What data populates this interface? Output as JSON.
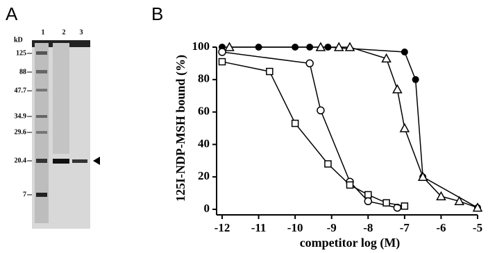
{
  "panels": {
    "a": "A",
    "b": "B"
  },
  "gel": {
    "unit": "kD",
    "lanes": [
      "1",
      "2",
      "3"
    ],
    "markers": [
      "125",
      "88",
      "47.7",
      "34.9",
      "29.6",
      "20.4",
      "7"
    ]
  },
  "chart_data": {
    "type": "line",
    "y_label": "125I-NDP-MSH bound (%)",
    "x_label": "competitor log (M)",
    "xlim": [
      -12,
      -5
    ],
    "xticks": [
      -12,
      -11,
      -10,
      -9,
      -8,
      -7,
      -6,
      -5
    ],
    "ylim": [
      0,
      100
    ],
    "yticks": [
      0,
      20,
      40,
      60,
      80,
      100
    ],
    "series": [
      {
        "marker": "filled-circle",
        "color": "#000000",
        "x": [
          -12,
          -11,
          -10,
          -9.6,
          -9.1,
          -7,
          -6.7,
          -6.5,
          -5
        ],
        "values": [
          100,
          100,
          100,
          100,
          100,
          97,
          80,
          20,
          1
        ]
      },
      {
        "marker": "open-triangle",
        "color": "#000000",
        "x": [
          -11.8,
          -9.3,
          -8.8,
          -8.5,
          -7.5,
          -7.2,
          -7,
          -6.5,
          -6,
          -5.5,
          -5
        ],
        "values": [
          100,
          100,
          100,
          100,
          93,
          74,
          50,
          20,
          8,
          5,
          1
        ]
      },
      {
        "marker": "open-circle",
        "color": "#000000",
        "x": [
          -12,
          -9.6,
          -9.3,
          -8.5,
          -8,
          -7.2
        ],
        "values": [
          97,
          90,
          61,
          17,
          5,
          1
        ]
      },
      {
        "marker": "open-square",
        "color": "#000000",
        "x": [
          -12,
          -10.7,
          -10,
          -9.1,
          -8.5,
          -8,
          -7.5,
          -7
        ],
        "values": [
          91,
          85,
          53,
          28,
          15,
          9,
          4,
          2
        ]
      }
    ]
  }
}
